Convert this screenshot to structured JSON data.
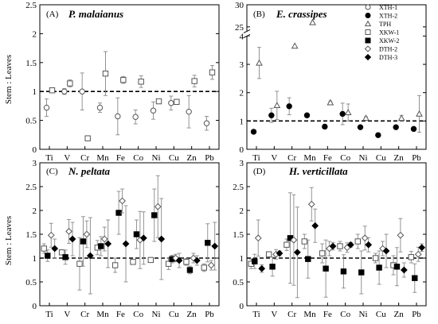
{
  "figure": {
    "ylabel": "Stem : Leaves",
    "reference_line": 1,
    "legend": {
      "placement": "top-right",
      "entries": [
        {
          "name": "XTH-1",
          "marker": "circle-open"
        },
        {
          "name": "XTH-2",
          "marker": "circle-filled"
        },
        {
          "name": "TPH",
          "marker": "triangle-open"
        },
        {
          "name": "XKW-1",
          "marker": "square-open"
        },
        {
          "name": "XKW-2",
          "marker": "square-filled"
        },
        {
          "name": "DTH-2",
          "marker": "diamond-open"
        },
        {
          "name": "DTH-3",
          "marker": "diamond-filled"
        }
      ]
    }
  },
  "chart_data": [
    {
      "type": "scatter",
      "panel": "(A)",
      "title": "P. malaianus",
      "categories": [
        "Ti",
        "V",
        "Cr",
        "Mn",
        "Fe",
        "Co",
        "Ni",
        "Cu",
        "Zn",
        "Pb"
      ],
      "ylim": [
        0,
        2.5
      ],
      "yticks": [
        0,
        0.5,
        1,
        1.5,
        2,
        2.5
      ],
      "series": [
        {
          "name": "XTH-1",
          "values": [
            0.72,
            1.0,
            1.0,
            0.72,
            0.57,
            0.56,
            0.67,
            0.8,
            0.65,
            0.45
          ],
          "err": [
            0.15,
            0.05,
            0.32,
            0.08,
            0.32,
            0.12,
            0.15,
            0.12,
            0.28,
            0.12
          ]
        },
        {
          "name": "XKW-1",
          "values": [
            1.02,
            1.14,
            0.19,
            1.31,
            1.2,
            1.17,
            0.83,
            0.82,
            1.18,
            1.33
          ],
          "err": [
            0.03,
            0.06,
            0.04,
            0.38,
            0.06,
            0.1,
            0.04,
            0.04,
            0.1,
            0.12
          ]
        }
      ]
    },
    {
      "type": "scatter",
      "panel": "(B)",
      "title": "E. crassipes",
      "categories": [
        "Ti",
        "V",
        "Cr",
        "Mn",
        "Fe",
        "Co",
        "Ni",
        "Cu",
        "Zn",
        "Pb"
      ],
      "ylim": [
        0,
        30
      ],
      "axis_break": {
        "from": 4,
        "to": 24
      },
      "yticks": [
        0,
        1,
        2,
        3,
        4,
        25,
        30
      ],
      "series": [
        {
          "name": "XTH-2",
          "values": [
            0.62,
            1.2,
            1.52,
            1.2,
            0.8,
            1.25,
            0.78,
            0.5,
            0.78,
            0.72
          ],
          "err": [
            0.04,
            0.25,
            0.3,
            0.04,
            0.04,
            0.38,
            0.04,
            0.04,
            0.06,
            0.05
          ]
        },
        {
          "name": "TPH",
          "values": [
            3.05,
            1.55,
            3.65,
            26.0,
            1.65,
            1.3,
            1.1,
            null,
            1.1,
            1.25
          ],
          "err": [
            0.55,
            0.5,
            0,
            0,
            0.05,
            0.3,
            0.05,
            0,
            0.1,
            0.65
          ]
        }
      ]
    },
    {
      "type": "scatter",
      "panel": "(C)",
      "title": "N. peltata",
      "categories": [
        "Ti",
        "V",
        "Cr",
        "Mn",
        "Fe",
        "Co",
        "Ni",
        "Cu",
        "Zn",
        "Pb"
      ],
      "ylim": [
        0,
        3
      ],
      "yticks": [
        0,
        0.5,
        1,
        1.5,
        2,
        2.5,
        3
      ],
      "series": [
        {
          "name": "XKW-1",
          "values": [
            1.2,
            1.12,
            0.88,
            1.22,
            0.85,
            0.92,
            0.96,
            0.88,
            0.92,
            0.8
          ],
          "err": [
            0.1,
            0.05,
            0.55,
            0.15,
            0.15,
            0.05,
            0.05,
            0.12,
            0.07,
            0.08
          ]
        },
        {
          "name": "XKW-2",
          "values": [
            1.05,
            1.02,
            1.35,
            1.25,
            1.95,
            1.5,
            1.9,
            0.98,
            0.75,
            1.32
          ],
          "err": [
            0.12,
            0.15,
            0.52,
            0.2,
            0.45,
            0.3,
            0.55,
            0.08,
            0.08,
            0.4
          ]
        },
        {
          "name": "DTH-2",
          "values": [
            1.48,
            1.56,
            1.5,
            1.4,
            2.2,
            1.38,
            2.08,
            1.0,
            1.0,
            0.85
          ],
          "err": [
            0.25,
            0.25,
            0.28,
            0.25,
            0.25,
            0.6,
            0.65,
            0.08,
            0.1,
            0.1
          ]
        },
        {
          "name": "DTH-3",
          "values": [
            1.2,
            1.4,
            1.05,
            1.3,
            1.3,
            1.42,
            1.4,
            0.95,
            0.95,
            1.25
          ],
          "err": [
            0.2,
            0.35,
            0.8,
            0.5,
            0.8,
            0.55,
            0.85,
            0.15,
            0.1,
            0.5
          ]
        }
      ]
    },
    {
      "type": "scatter",
      "panel": "(D)",
      "title": "H. verticillata",
      "categories": [
        "Ti",
        "V",
        "Cr",
        "Mn",
        "Fe",
        "Co",
        "Ni",
        "Cu",
        "Zn",
        "Pb"
      ],
      "ylim": [
        0,
        3
      ],
      "yticks": [
        0,
        0.5,
        1,
        1.5,
        2,
        2.5,
        3
      ],
      "series": [
        {
          "name": "XKW-1",
          "values": [
            0.88,
            1.08,
            1.28,
            1.35,
            1.1,
            1.25,
            1.35,
            1.0,
            0.85,
            1.02
          ],
          "err": [
            0.1,
            0.05,
            0.12,
            0.15,
            0.2,
            0.1,
            0.15,
            0.1,
            0.2,
            0.12
          ]
        },
        {
          "name": "XKW-2",
          "values": [
            0.93,
            0.82,
            1.42,
            0.98,
            0.78,
            0.72,
            0.7,
            0.8,
            0.82,
            0.58
          ],
          "err": [
            0.15,
            0.2,
            0.95,
            0.4,
            0.6,
            0.35,
            0.45,
            0.35,
            0.4,
            0.3
          ]
        },
        {
          "name": "DTH-2",
          "values": [
            1.42,
            1.08,
            1.38,
            2.13,
            1.2,
            1.22,
            1.42,
            1.2,
            1.48,
            1.08
          ],
          "err": [
            0.38,
            0.1,
            0.95,
            0.35,
            0.15,
            0.1,
            0.25,
            0.15,
            0.35,
            0.15
          ]
        },
        {
          "name": "DTH-3",
          "values": [
            0.78,
            1.1,
            1.12,
            1.68,
            1.25,
            1.28,
            1.28,
            1.15,
            0.75,
            1.22
          ],
          "err": [
            0.08,
            0.05,
            0.95,
            0.35,
            0.08,
            0.05,
            0.15,
            0.35,
            0.15,
            0.08
          ]
        }
      ]
    }
  ]
}
